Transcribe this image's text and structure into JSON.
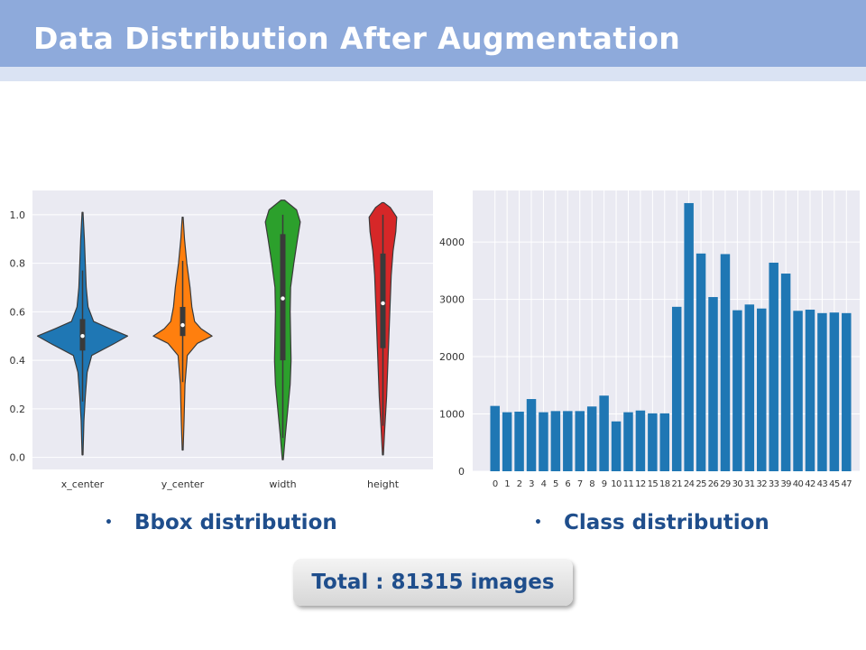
{
  "header": {
    "title": "Data Distribution After Augmentation"
  },
  "bullets": {
    "left": "Bbox distribution",
    "right": "Class distribution",
    "marker": "•"
  },
  "total": {
    "label": "Total : 81315 images"
  },
  "colors": {
    "header_bg": "#8eaadb",
    "header_strip": "#dae3f3",
    "plot_bg": "#eaeaf2",
    "bar": "#1f77b4",
    "text_accent": "#1f4e8c"
  },
  "chart_data": [
    {
      "type": "violin",
      "title": "",
      "xlabel": "",
      "ylabel": "",
      "ylim": [
        -0.05,
        1.1
      ],
      "yticks": [
        "0.0",
        "0.2",
        "0.4",
        "0.6",
        "0.8",
        "1.0"
      ],
      "grid": true,
      "series": [
        {
          "name": "x_center",
          "color": "#1f77b4",
          "min": 0.01,
          "max": 1.01,
          "q1": 0.44,
          "median": 0.5,
          "q3": 0.57,
          "whisker_low": 0.23,
          "whisker_high": 0.77,
          "density": [
            [
              0.01,
              0.005
            ],
            [
              0.15,
              0.015
            ],
            [
              0.25,
              0.03
            ],
            [
              0.35,
              0.05
            ],
            [
              0.42,
              0.1
            ],
            [
              0.47,
              0.35
            ],
            [
              0.5,
              0.49
            ],
            [
              0.53,
              0.3
            ],
            [
              0.56,
              0.12
            ],
            [
              0.62,
              0.06
            ],
            [
              0.7,
              0.04
            ],
            [
              0.8,
              0.03
            ],
            [
              0.9,
              0.02
            ],
            [
              1.01,
              0.005
            ]
          ]
        },
        {
          "name": "y_center",
          "color": "#ff7f0e",
          "min": 0.03,
          "max": 0.99,
          "q1": 0.5,
          "median": 0.545,
          "q3": 0.62,
          "whisker_low": 0.31,
          "whisker_high": 0.81,
          "density": [
            [
              0.03,
              0.005
            ],
            [
              0.15,
              0.015
            ],
            [
              0.3,
              0.025
            ],
            [
              0.42,
              0.05
            ],
            [
              0.47,
              0.16
            ],
            [
              0.5,
              0.32
            ],
            [
              0.53,
              0.2
            ],
            [
              0.56,
              0.13
            ],
            [
              0.62,
              0.1
            ],
            [
              0.7,
              0.08
            ],
            [
              0.8,
              0.045
            ],
            [
              0.9,
              0.02
            ],
            [
              0.99,
              0.005
            ]
          ]
        },
        {
          "name": "width",
          "color": "#2ca02c",
          "min": -0.01,
          "max": 1.06,
          "q1": 0.4,
          "median": 0.655,
          "q3": 0.92,
          "whisker_low": 0.08,
          "whisker_high": 1.0,
          "density": [
            [
              -0.01,
              0.005
            ],
            [
              0.1,
              0.03
            ],
            [
              0.2,
              0.055
            ],
            [
              0.3,
              0.08
            ],
            [
              0.4,
              0.09
            ],
            [
              0.5,
              0.085
            ],
            [
              0.6,
              0.08
            ],
            [
              0.7,
              0.085
            ],
            [
              0.8,
              0.12
            ],
            [
              0.9,
              0.16
            ],
            [
              0.97,
              0.19
            ],
            [
              1.02,
              0.15
            ],
            [
              1.06,
              0.02
            ]
          ]
        },
        {
          "name": "height",
          "color": "#d62728",
          "min": 0.01,
          "max": 1.05,
          "q1": 0.45,
          "median": 0.635,
          "q3": 0.84,
          "whisker_low": 0.13,
          "whisker_high": 1.0,
          "density": [
            [
              0.01,
              0.005
            ],
            [
              0.12,
              0.02
            ],
            [
              0.25,
              0.04
            ],
            [
              0.35,
              0.05
            ],
            [
              0.45,
              0.06
            ],
            [
              0.55,
              0.07
            ],
            [
              0.65,
              0.08
            ],
            [
              0.75,
              0.09
            ],
            [
              0.85,
              0.11
            ],
            [
              0.93,
              0.14
            ],
            [
              0.99,
              0.15
            ],
            [
              1.03,
              0.08
            ],
            [
              1.05,
              0.01
            ]
          ]
        }
      ]
    },
    {
      "type": "bar",
      "title": "",
      "xlabel": "",
      "ylabel": "",
      "ylim": [
        0,
        4900
      ],
      "yticks": [
        0,
        1000,
        2000,
        3000,
        4000
      ],
      "grid": true,
      "categories": [
        "0",
        "1",
        "2",
        "3",
        "4",
        "5",
        "6",
        "7",
        "8",
        "9",
        "10",
        "11",
        "12",
        "15",
        "18",
        "21",
        "24",
        "25",
        "26",
        "29",
        "30",
        "31",
        "32",
        "33",
        "39",
        "40",
        "42",
        "43",
        "45",
        "47"
      ],
      "values": [
        1140,
        1030,
        1040,
        1260,
        1030,
        1050,
        1050,
        1050,
        1130,
        1320,
        870,
        1030,
        1060,
        1010,
        1010,
        2870,
        4680,
        3800,
        3040,
        3790,
        2810,
        2910,
        2840,
        3640,
        3450,
        2800,
        2820,
        2760,
        2770,
        2760
      ]
    }
  ]
}
